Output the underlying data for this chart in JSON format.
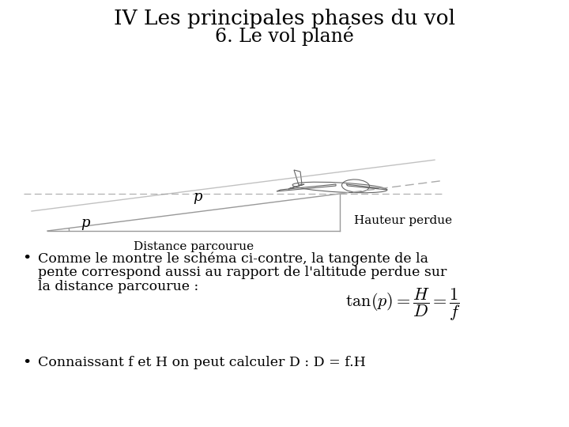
{
  "title_line1": "IV Les principales phases du vol",
  "title_line2": "6. Le vol plané",
  "title_fontsize": 19,
  "subtitle_fontsize": 17,
  "background_color": "#ffffff",
  "text_color": "#000000",
  "bullet1_line1": "Comme le montre le schéma ci-contre, la tangente de la",
  "bullet1_line2": "pente correspond aussi au rapport de l'altitude perdue sur",
  "bullet1_line3": "la distance parcourue :",
  "bullet2": "Connaissant f et H on peut calculer D : D = f.H",
  "body_fontsize": 12.5,
  "diagram_label_p1": "p",
  "diagram_label_p2": "p",
  "diagram_label_hauteur": "Hauteur perdue",
  "diagram_label_distance": "Distance parcourue",
  "line_color": "#999999",
  "dashed_color": "#aaaaaa"
}
